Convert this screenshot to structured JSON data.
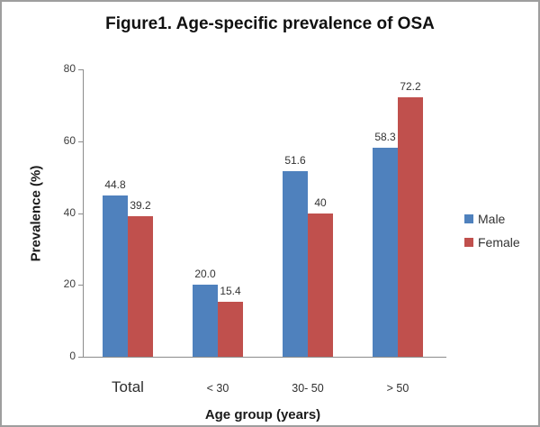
{
  "chart_data": {
    "type": "bar",
    "title": "Figure1. Age-specific prevalence of OSA",
    "xlabel": "Age group (years)",
    "ylabel": "Prevalence (%)",
    "categories": [
      "Total",
      "< 30",
      "30- 50",
      "> 50"
    ],
    "series": [
      {
        "name": "Male",
        "color": "#4F81BD",
        "values": [
          44.8,
          20.0,
          51.6,
          58.3
        ],
        "labels": [
          "44.8",
          "20.0",
          "51.6",
          "58.3"
        ]
      },
      {
        "name": "Female",
        "color": "#C0504D",
        "values": [
          39.2,
          15.4,
          40,
          72.2
        ],
        "labels": [
          "39.2",
          "15.4",
          "40",
          "72.2"
        ]
      }
    ],
    "ylim": [
      0,
      80
    ],
    "yticks": [
      "0",
      "20",
      "40",
      "60",
      "80"
    ],
    "legend_position": "right",
    "grid": false
  },
  "colors": {
    "male": "#4F81BD",
    "female": "#C0504D",
    "axis": "#8C8C8C",
    "border": "#9E9E9E",
    "background": "#FFFFFF"
  }
}
